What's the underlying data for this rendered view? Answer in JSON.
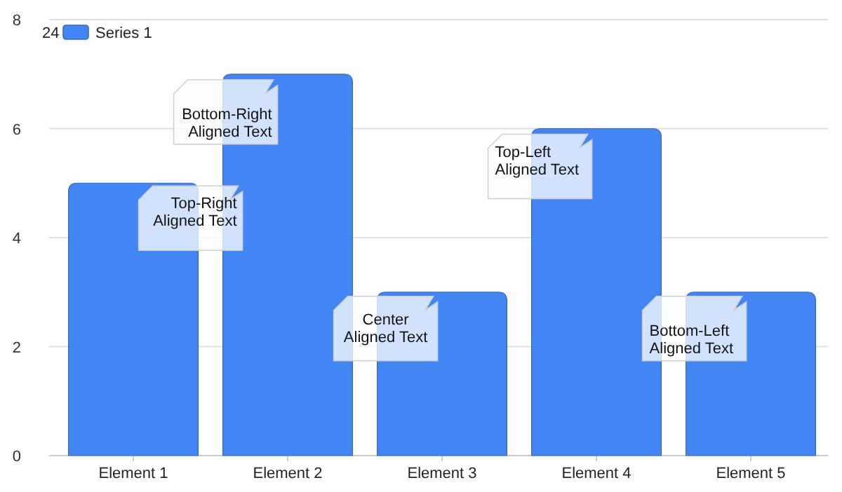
{
  "chart_data": {
    "type": "bar",
    "categories": [
      "Element 1",
      "Element 2",
      "Element 3",
      "Element 4",
      "Element 5"
    ],
    "series": [
      {
        "name": "Series 1",
        "color": "#4285f4",
        "values": [
          5,
          7,
          3,
          6,
          3
        ]
      }
    ],
    "ylim": [
      0,
      8
    ],
    "yticks": [
      0,
      2,
      4,
      6,
      8
    ],
    "grid": "y",
    "legend": "top left",
    "legend_title": "24",
    "annotations": [
      {
        "text": "Top-Right Aligned Text",
        "x": "Element 1",
        "y": 5
      },
      {
        "text": "Bottom-Right Aligned Text",
        "x": "Element 2",
        "y": 7
      },
      {
        "text": "Center Aligned Text",
        "x": "Element 3",
        "y": 3
      },
      {
        "text": "Top-Left Aligned Text",
        "x": "Element 4",
        "y": 6
      },
      {
        "text": "Bottom-Left Aligned Text",
        "x": "Element 5",
        "y": 3
      }
    ]
  }
}
